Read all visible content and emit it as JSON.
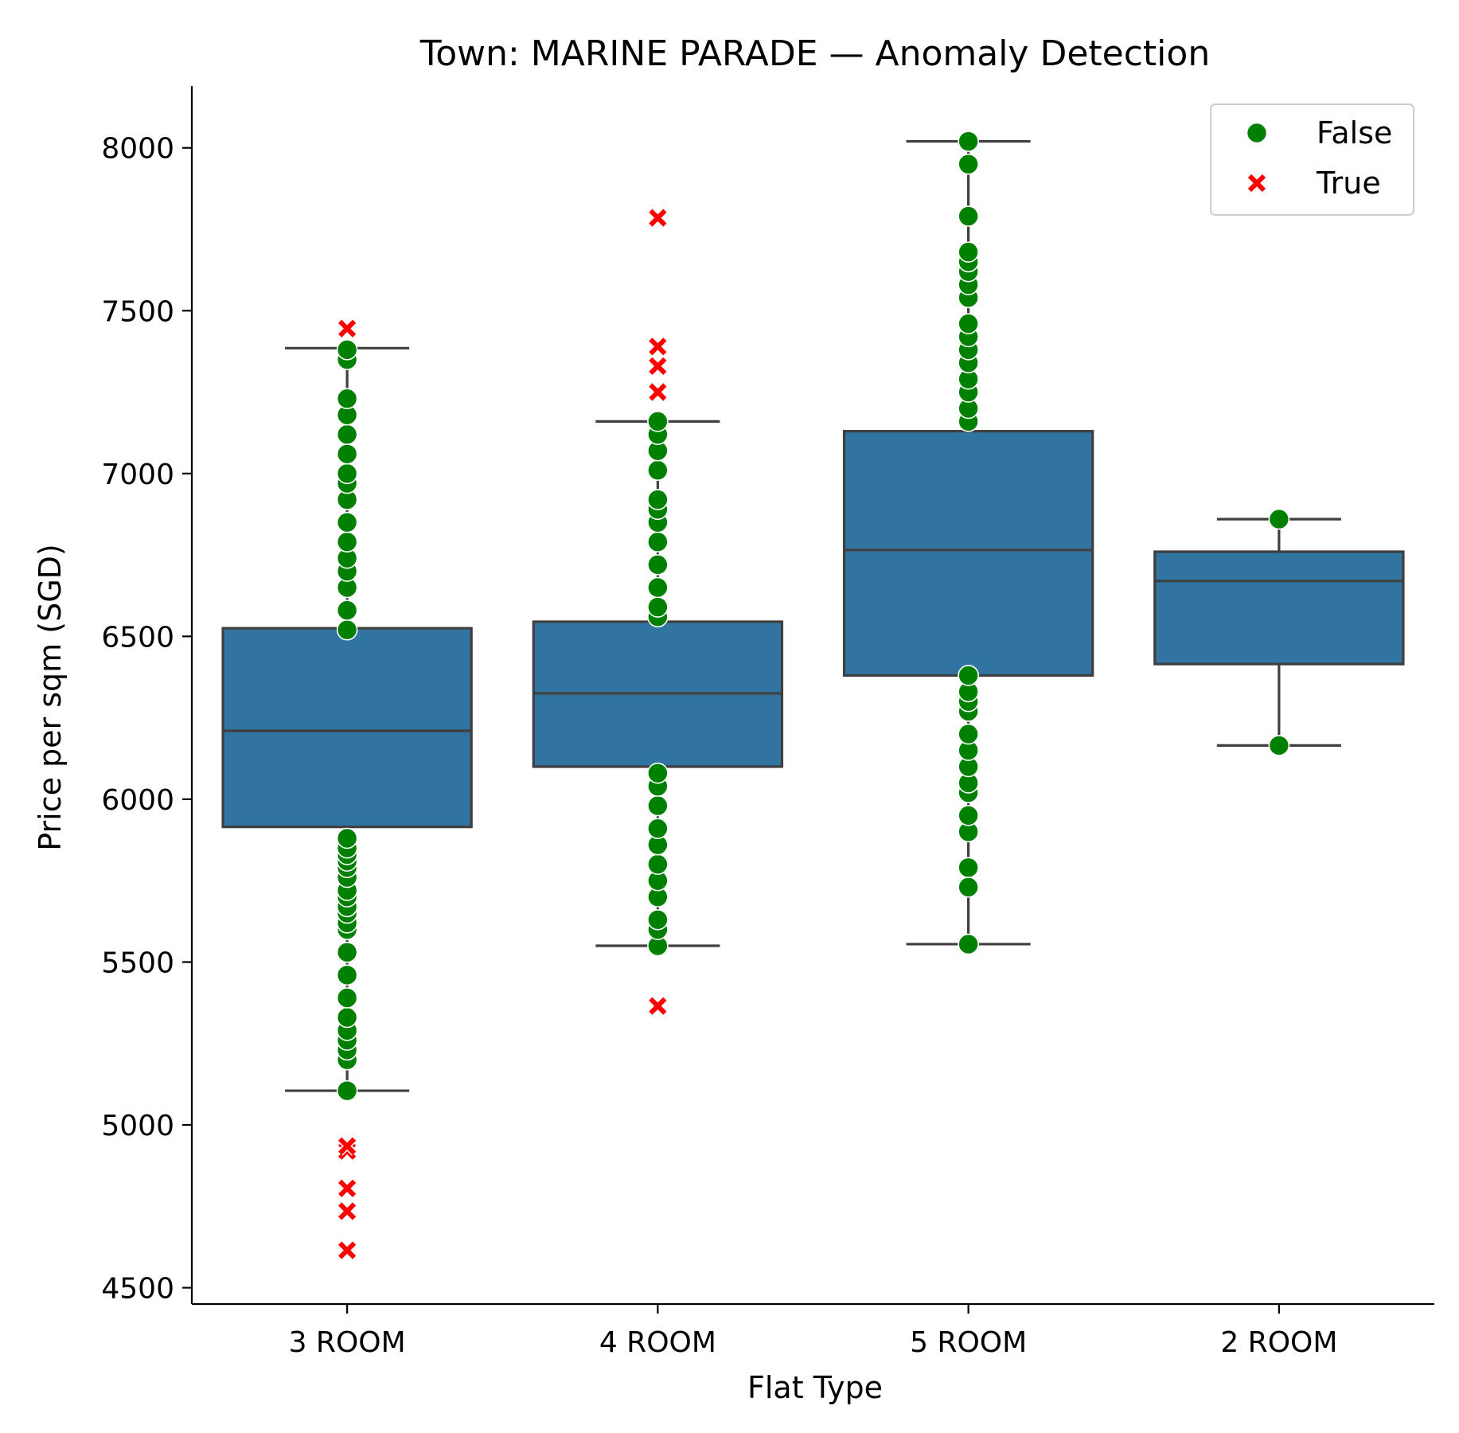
{
  "chart_data": {
    "type": "box",
    "title": "Town: MARINE PARADE — Anomaly Detection",
    "xlabel": "Flat Type",
    "ylabel": "Price per sqm (SGD)",
    "ylim": [
      4450,
      8190
    ],
    "yticks": [
      4500,
      5000,
      5500,
      6000,
      6500,
      7000,
      7500,
      8000
    ],
    "categories": [
      "3 ROOM",
      "4 ROOM",
      "5 ROOM",
      "2 ROOM"
    ],
    "boxes": [
      {
        "category": "3 ROOM",
        "whisker_low": 5105,
        "q1": 5915,
        "median": 6210,
        "q3": 6525,
        "whisker_high": 7385
      },
      {
        "category": "4 ROOM",
        "whisker_low": 5550,
        "q1": 6100,
        "median": 6325,
        "q3": 6545,
        "whisker_high": 7160
      },
      {
        "category": "5 ROOM",
        "whisker_low": 5555,
        "q1": 6380,
        "median": 6765,
        "q3": 7130,
        "whisker_high": 8020
      },
      {
        "category": "2 ROOM",
        "whisker_low": 6165,
        "q1": 6415,
        "median": 6670,
        "q3": 6760,
        "whisker_high": 6860
      }
    ],
    "points": {
      "False": {
        "3 ROOM": [
          5105,
          5200,
          5230,
          5260,
          5290,
          5330,
          5390,
          5460,
          5530,
          5600,
          5620,
          5650,
          5670,
          5700,
          5720,
          5760,
          5790,
          5810,
          5830,
          5850,
          5880,
          6520,
          6580,
          6650,
          6700,
          6740,
          6790,
          6850,
          6920,
          6970,
          7000,
          7060,
          7120,
          7180,
          7230,
          7350,
          7380
        ],
        "4 ROOM": [
          5550,
          5600,
          5630,
          5700,
          5750,
          5800,
          5860,
          5910,
          5980,
          6040,
          6080,
          6560,
          6590,
          6650,
          6720,
          6790,
          6850,
          6890,
          6920,
          7010,
          7070,
          7120,
          7160
        ],
        "5 ROOM": [
          5555,
          5730,
          5790,
          5900,
          5950,
          6020,
          6050,
          6100,
          6150,
          6200,
          6270,
          6300,
          6330,
          6380,
          7160,
          7200,
          7250,
          7290,
          7340,
          7380,
          7420,
          7460,
          7540,
          7580,
          7620,
          7650,
          7680,
          7790,
          7950,
          8020
        ],
        "2 ROOM": [
          6165,
          6860
        ]
      },
      "True": {
        "3 ROOM": [
          4615,
          4735,
          4805,
          4920,
          4935,
          7445
        ],
        "4 ROOM": [
          5365,
          7250,
          7330,
          7390,
          7785
        ]
      }
    },
    "legend": {
      "placement": "top-right",
      "entries": [
        {
          "label": "False",
          "marker": "circle",
          "color": "#008000"
        },
        {
          "label": "True",
          "marker": "x",
          "color": "#ff0000"
        }
      ]
    },
    "colors": {
      "box_fill": "#3274a1",
      "box_edge": "#3f3f3f",
      "normal": "#008000",
      "anomaly": "#ff0000"
    },
    "grid": false
  }
}
